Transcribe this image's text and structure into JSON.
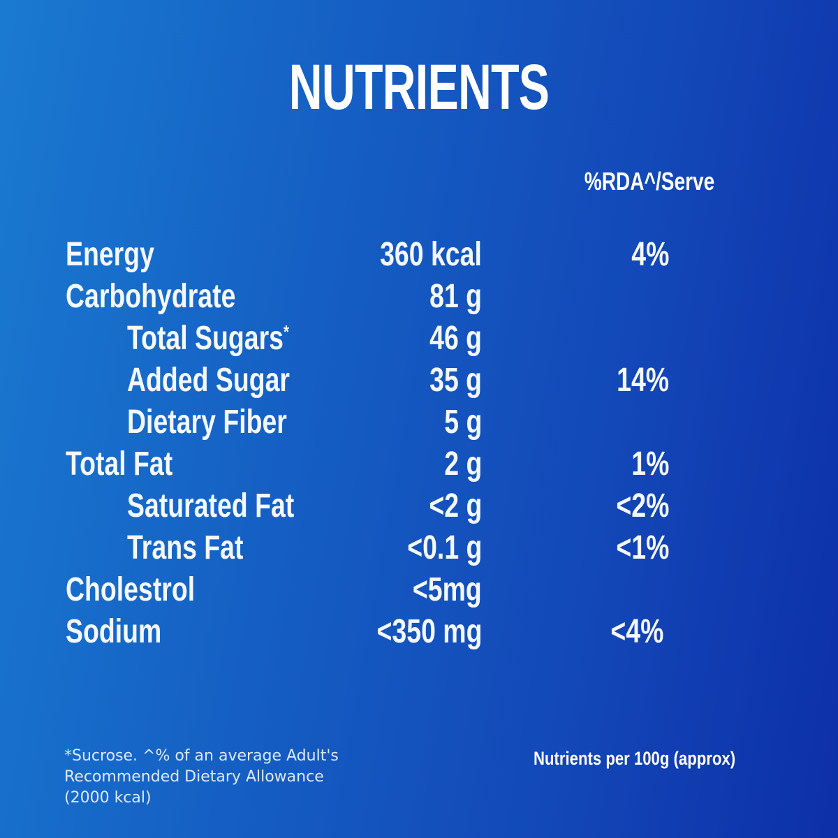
{
  "title": "NUTRIENTS",
  "column_header": "%RDA^/Serve",
  "rows": [
    {
      "name": "Energy",
      "amount": "360 kcal",
      "rda": "4%",
      "indent": false
    },
    {
      "name": "Carbohydrate",
      "amount": "81 g",
      "rda": "",
      "indent": false
    },
    {
      "name": "Total Sugars",
      "name_mark": "*",
      "amount": "46 g",
      "rda": "",
      "indent": true
    },
    {
      "name": "Added Sugar",
      "amount": "35 g",
      "rda": "14%",
      "indent": true
    },
    {
      "name": "Dietary Fiber",
      "amount": "5 g",
      "rda": "",
      "indent": true
    },
    {
      "name": "Total Fat",
      "amount": "2 g",
      "rda": "1%",
      "indent": false
    },
    {
      "name": "Saturated Fat",
      "amount": "<2 g",
      "rda": "<2%",
      "indent": true
    },
    {
      "name": "Trans Fat",
      "amount": "<0.1 g",
      "rda": "<1%",
      "indent": true
    },
    {
      "name": "Cholestrol",
      "amount": "<5mg",
      "rda": "",
      "indent": false
    },
    {
      "name": "Sodium",
      "amount": "<350 mg",
      "rda": "<4%",
      "indent": false
    }
  ],
  "footnote": {
    "line1": "*Sucrose. ^% of an average Adult's",
    "line2": "Recommended Dietary Allowance",
    "line3": "(2000 kcal)"
  },
  "per_100g_note": "Nutrients per 100g (approx)",
  "colors": {
    "background_start": "#1a7ad1",
    "background_end": "#0d2fa8",
    "text": "#ffffff"
  }
}
